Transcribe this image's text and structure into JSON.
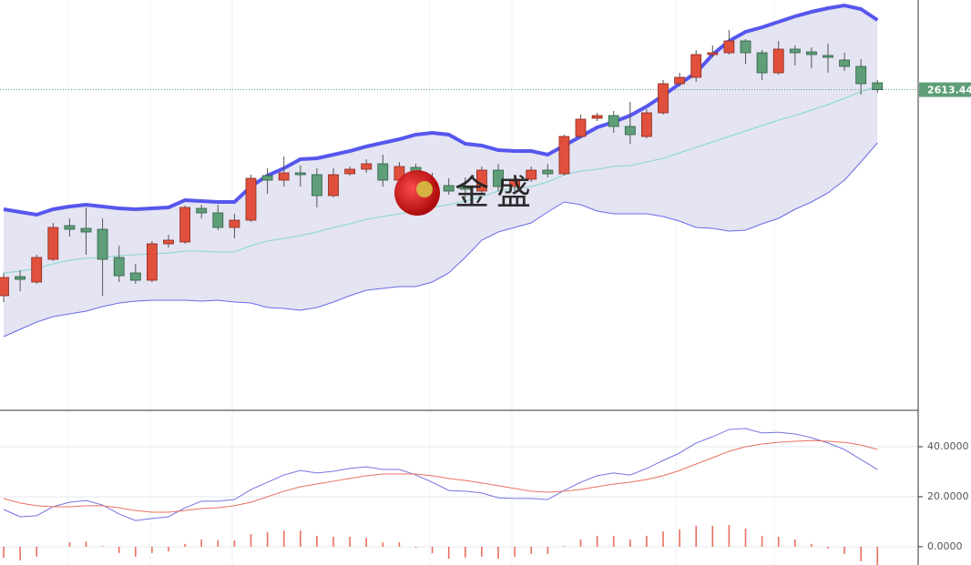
{
  "chart_data": [
    {
      "type": "candlestick",
      "watermark": "金盛",
      "up_color": "#e0503c",
      "down_color": "#5f9e78",
      "band_fill": "#e4e4f2",
      "ylim": [
        2262,
        2712
      ],
      "price_line": {
        "value": 2613.44,
        "label": "2613.44",
        "color": "#5e9e77"
      },
      "open": [
        2387,
        2408,
        2402,
        2427,
        2464,
        2461,
        2460,
        2429,
        2412,
        2404,
        2444,
        2446,
        2483,
        2478,
        2462,
        2470,
        2519,
        2514,
        2522,
        2520,
        2497,
        2521,
        2526,
        2532,
        2514,
        2528,
        2511,
        2508,
        2507,
        2502,
        2525,
        2507,
        2515,
        2525,
        2521,
        2562,
        2582,
        2585,
        2573,
        2562,
        2588,
        2620,
        2627,
        2652,
        2654,
        2667,
        2654,
        2632,
        2658,
        2655,
        2651,
        2646,
        2639,
        2621
      ],
      "high": [
        2412,
        2415,
        2432,
        2467,
        2472,
        2484,
        2472,
        2442,
        2422,
        2447,
        2454,
        2486,
        2487,
        2487,
        2477,
        2520,
        2527,
        2540,
        2530,
        2527,
        2527,
        2529,
        2537,
        2542,
        2534,
        2532,
        2522,
        2516,
        2517,
        2529,
        2532,
        2517,
        2529,
        2532,
        2564,
        2586,
        2588,
        2590,
        2600,
        2592,
        2624,
        2632,
        2657,
        2662,
        2679,
        2669,
        2657,
        2667,
        2662,
        2660,
        2664,
        2654,
        2647,
        2624
      ],
      "low": [
        2380,
        2392,
        2400,
        2425,
        2452,
        2432,
        2387,
        2402,
        2400,
        2402,
        2440,
        2444,
        2472,
        2459,
        2450,
        2468,
        2499,
        2507,
        2507,
        2484,
        2495,
        2519,
        2522,
        2507,
        2512,
        2502,
        2494,
        2498,
        2494,
        2499,
        2502,
        2502,
        2512,
        2517,
        2519,
        2560,
        2579,
        2566,
        2554,
        2560,
        2586,
        2617,
        2622,
        2649,
        2652,
        2642,
        2624,
        2630,
        2640,
        2637,
        2632,
        2634,
        2608,
        2610
      ],
      "close": [
        2407,
        2405,
        2429,
        2462,
        2460,
        2457,
        2427,
        2409,
        2404,
        2444,
        2448,
        2484,
        2478,
        2462,
        2470,
        2516,
        2514,
        2522,
        2520,
        2497,
        2520,
        2526,
        2532,
        2514,
        2529,
        2512,
        2508,
        2502,
        2504,
        2525,
        2507,
        2514,
        2525,
        2521,
        2562,
        2581,
        2585,
        2573,
        2564,
        2588,
        2620,
        2627,
        2652,
        2654,
        2667,
        2654,
        2632,
        2658,
        2654,
        2652,
        2649,
        2639,
        2620,
        2613.44
      ],
      "bands": {
        "upper": {
          "color": "#5656ee",
          "values": [
            2482,
            2479,
            2476,
            2482,
            2485,
            2487,
            2485,
            2483,
            2482,
            2483,
            2484,
            2492,
            2491,
            2490,
            2490,
            2507,
            2519,
            2527,
            2537,
            2538,
            2542,
            2546,
            2551,
            2555,
            2559,
            2564,
            2566,
            2564,
            2554,
            2552,
            2547,
            2546,
            2546,
            2542,
            2552,
            2562,
            2572,
            2578,
            2585,
            2595,
            2607,
            2620,
            2632,
            2652,
            2667,
            2677,
            2682,
            2688,
            2694,
            2699,
            2703,
            2706,
            2702,
            2690
          ]
        },
        "middle": {
          "color": "#86d9c8",
          "values": [
            2412,
            2414,
            2417,
            2422,
            2426,
            2428,
            2429,
            2431,
            2432,
            2433,
            2434,
            2436,
            2436,
            2435,
            2435,
            2442,
            2447,
            2450,
            2453,
            2457,
            2462,
            2466,
            2471,
            2474,
            2477,
            2480,
            2484,
            2487,
            2491,
            2496,
            2502,
            2505,
            2507,
            2512,
            2520,
            2524,
            2526,
            2529,
            2530,
            2534,
            2538,
            2544,
            2550,
            2556,
            2562,
            2568,
            2574,
            2580,
            2585,
            2591,
            2597,
            2604,
            2611,
            2617
          ]
        },
        "lower": {
          "color": "#6a6ae8",
          "values": [
            2342,
            2350,
            2358,
            2364,
            2367,
            2370,
            2375,
            2379,
            2381,
            2382,
            2382,
            2382,
            2381,
            2382,
            2380,
            2379,
            2374,
            2373,
            2371,
            2374,
            2380,
            2387,
            2393,
            2395,
            2397,
            2397,
            2402,
            2412,
            2429,
            2448,
            2457,
            2462,
            2467,
            2479,
            2490,
            2487,
            2480,
            2477,
            2477,
            2477,
            2474,
            2469,
            2462,
            2461,
            2458,
            2459,
            2466,
            2472,
            2482,
            2490,
            2500,
            2514,
            2534,
            2555
          ]
        }
      }
    },
    {
      "type": "macd",
      "ylim": [
        -7.3,
        54.2
      ],
      "yticks": [
        {
          "value": 0,
          "label": "0.0000"
        },
        {
          "value": 20,
          "label": "20.0000"
        },
        {
          "value": 40,
          "label": "40.0000"
        }
      ],
      "series": [
        {
          "color": "#7373e0",
          "values": [
            14.9,
            12.0,
            12.4,
            16.0,
            17.8,
            18.5,
            16.7,
            13.1,
            10.5,
            11.3,
            12.0,
            15.6,
            18.2,
            18.2,
            18.9,
            22.9,
            25.8,
            28.7,
            30.5,
            29.5,
            30.2,
            31.3,
            32.0,
            30.9,
            30.9,
            28.7,
            25.8,
            22.5,
            22.2,
            21.5,
            19.6,
            19.3,
            19.3,
            18.9,
            22.5,
            25.8,
            28.4,
            29.5,
            28.7,
            31.3,
            34.5,
            37.5,
            41.5,
            44.0,
            46.9,
            47.3,
            45.5,
            45.8,
            45.1,
            43.6,
            41.5,
            38.9,
            34.9,
            30.9
          ]
        },
        {
          "color": "#e8705f",
          "values": [
            19.3,
            17.5,
            16.4,
            16.0,
            16.0,
            16.4,
            16.4,
            15.6,
            14.5,
            13.8,
            13.8,
            14.5,
            15.3,
            15.6,
            16.4,
            17.8,
            20.0,
            22.2,
            24.0,
            25.1,
            26.2,
            27.3,
            28.4,
            29.1,
            29.1,
            29.1,
            28.4,
            27.3,
            26.5,
            25.5,
            24.4,
            23.3,
            22.2,
            21.8,
            22.2,
            22.9,
            24.0,
            25.1,
            25.8,
            26.9,
            28.4,
            30.5,
            33.1,
            35.6,
            38.2,
            40.0,
            41.1,
            41.8,
            42.2,
            42.5,
            42.2,
            41.8,
            40.7,
            38.9
          ]
        }
      ],
      "histogram": {
        "color": "#e8705f",
        "values": [
          -4.4,
          -5.5,
          -4.0,
          0,
          1.8,
          2.1,
          0.3,
          -2.5,
          -4.0,
          -2.5,
          -1.8,
          1.1,
          2.9,
          2.6,
          2.5,
          5.1,
          5.8,
          6.5,
          6.5,
          4.4,
          4.0,
          4.0,
          3.6,
          1.8,
          1.8,
          -0.4,
          -2.6,
          -4.8,
          -4.3,
          -4.0,
          -4.8,
          -4.0,
          -2.9,
          -2.9,
          0.3,
          2.9,
          4.4,
          4.4,
          2.9,
          4.4,
          6.1,
          7.0,
          8.4,
          8.4,
          8.7,
          7.3,
          4.4,
          4.0,
          2.9,
          1.1,
          -0.7,
          -2.9,
          -5.8,
          -8.0
        ]
      }
    }
  ]
}
